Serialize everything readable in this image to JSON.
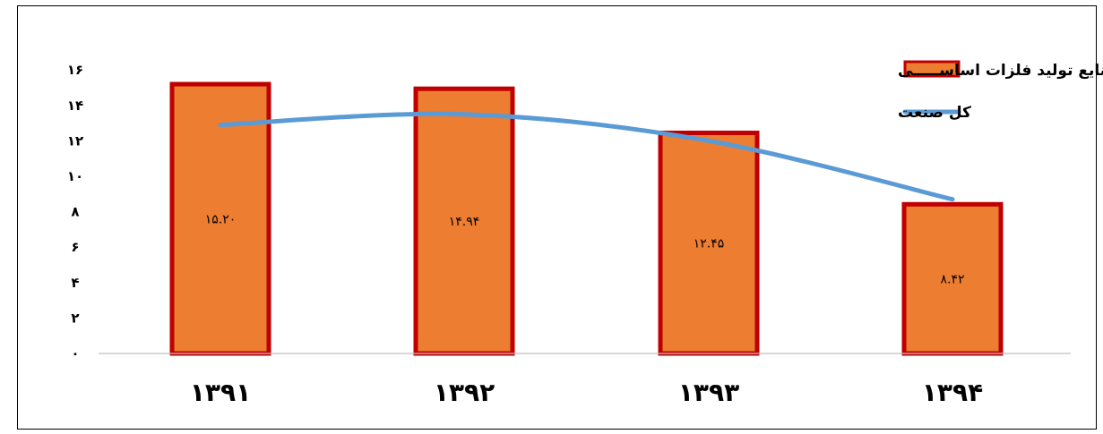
{
  "chart_data": {
    "type": "bar",
    "categories": [
      "۱۳۹۱",
      "۱۳۹۲",
      "۱۳۹۳",
      "۱۳۹۴"
    ],
    "series": [
      {
        "name": "صنایع تولید فلزات اساســـــی",
        "type": "bar",
        "values": [
          15.2,
          14.94,
          12.45,
          8.42
        ],
        "value_labels": [
          "۱۵.۲۰",
          "۱۴.۹۴",
          "۱۲.۴۵",
          "۸.۴۲"
        ],
        "color": "#ED7D31",
        "border_color": "#C00000"
      },
      {
        "name": "کل صنعت",
        "type": "line",
        "values": [
          12.9,
          13.5,
          12.0,
          8.7
        ],
        "color": "#5B9BD5"
      }
    ],
    "yticks": [
      {
        "value": 0,
        "label": "۰"
      },
      {
        "value": 2,
        "label": "۲"
      },
      {
        "value": 4,
        "label": "۴"
      },
      {
        "value": 6,
        "label": "۶"
      },
      {
        "value": 8,
        "label": "۸"
      },
      {
        "value": 10,
        "label": "۱۰"
      },
      {
        "value": 12,
        "label": "۱۲"
      },
      {
        "value": 14,
        "label": "۱۴"
      },
      {
        "value": 16,
        "label": "۱۶"
      }
    ],
    "ylim": [
      0,
      16
    ],
    "grid": false,
    "legend_position": "top-right"
  }
}
